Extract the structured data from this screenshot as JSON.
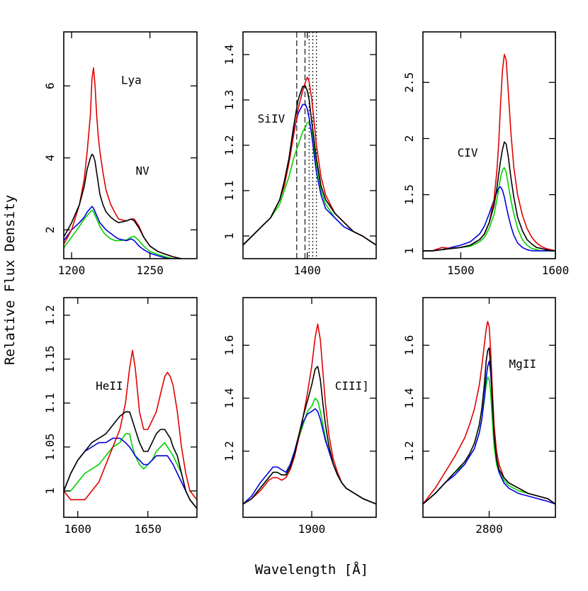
{
  "figure": {
    "ylabel": "Relative Flux Density",
    "xlabel": "Wavelength [Å]"
  },
  "series_colors": [
    "#e00000",
    "#000000",
    "#00d000",
    "#0000e0"
  ],
  "chart_data": [
    {
      "type": "line",
      "line_label": "Lya",
      "second_label": "NV",
      "xlim": [
        1195,
        1280
      ],
      "ylim": [
        1.2,
        7.5
      ],
      "xticks": [
        1200,
        1250
      ],
      "yticks": [
        2,
        4,
        6
      ],
      "x": [
        1195,
        1200,
        1205,
        1208,
        1210,
        1212,
        1213,
        1214,
        1215,
        1216,
        1217,
        1218,
        1220,
        1222,
        1225,
        1228,
        1230,
        1235,
        1238,
        1240,
        1243,
        1246,
        1250,
        1255,
        1260,
        1265,
        1270,
        1275,
        1280
      ],
      "series": [
        {
          "color": "#e00000",
          "values": [
            1.6,
            2.0,
            2.7,
            3.4,
            4.2,
            5.2,
            6.2,
            6.5,
            6.0,
            5.2,
            4.6,
            4.2,
            3.6,
            3.1,
            2.7,
            2.45,
            2.3,
            2.25,
            2.3,
            2.3,
            2.1,
            1.8,
            1.55,
            1.4,
            1.32,
            1.25,
            1.2,
            1.15,
            1.1
          ]
        },
        {
          "color": "#000000",
          "values": [
            1.8,
            2.2,
            2.7,
            3.2,
            3.7,
            4.0,
            4.1,
            4.05,
            3.9,
            3.6,
            3.3,
            3.0,
            2.7,
            2.5,
            2.35,
            2.25,
            2.2,
            2.25,
            2.3,
            2.25,
            2.05,
            1.8,
            1.55,
            1.4,
            1.32,
            1.25,
            1.2,
            1.15,
            1.1
          ]
        },
        {
          "color": "#00d000",
          "values": [
            1.5,
            1.8,
            2.1,
            2.3,
            2.4,
            2.5,
            2.55,
            2.5,
            2.4,
            2.3,
            2.2,
            2.1,
            1.95,
            1.85,
            1.75,
            1.7,
            1.7,
            1.72,
            1.8,
            1.82,
            1.7,
            1.55,
            1.4,
            1.32,
            1.25,
            1.2,
            1.15,
            1.12,
            1.1
          ]
        },
        {
          "color": "#0000e0",
          "values": [
            1.7,
            2.0,
            2.2,
            2.35,
            2.5,
            2.6,
            2.65,
            2.6,
            2.5,
            2.4,
            2.3,
            2.2,
            2.1,
            2.0,
            1.9,
            1.8,
            1.75,
            1.7,
            1.75,
            1.7,
            1.55,
            1.45,
            1.35,
            1.28,
            1.22,
            1.18,
            1.15,
            1.12,
            1.1
          ]
        }
      ]
    },
    {
      "type": "line",
      "line_label": "SiIV",
      "xlim": [
        1330,
        1475
      ],
      "ylim": [
        0.95,
        1.45
      ],
      "xticks": [
        1400
      ],
      "yticks": [
        1,
        1.1,
        1.2,
        1.3,
        1.4
      ],
      "vlines_dashed": [
        1388.5,
        1397.5
      ],
      "vlines_dotted": [
        1402,
        1406,
        1410
      ],
      "x": [
        1330,
        1340,
        1350,
        1360,
        1370,
        1375,
        1380,
        1385,
        1390,
        1395,
        1398,
        1400,
        1402,
        1405,
        1410,
        1415,
        1420,
        1430,
        1440,
        1450,
        1460,
        1475
      ],
      "series": [
        {
          "color": "#e00000",
          "values": [
            0.98,
            1.0,
            1.02,
            1.04,
            1.08,
            1.11,
            1.16,
            1.22,
            1.28,
            1.32,
            1.34,
            1.35,
            1.34,
            1.3,
            1.2,
            1.13,
            1.09,
            1.05,
            1.03,
            1.01,
            1.0,
            0.98
          ]
        },
        {
          "color": "#000000",
          "values": [
            0.98,
            1.0,
            1.02,
            1.04,
            1.08,
            1.12,
            1.17,
            1.24,
            1.3,
            1.33,
            1.33,
            1.32,
            1.3,
            1.25,
            1.17,
            1.11,
            1.08,
            1.05,
            1.03,
            1.01,
            1.0,
            0.98
          ]
        },
        {
          "color": "#00d000",
          "values": [
            0.98,
            1.0,
            1.02,
            1.04,
            1.07,
            1.1,
            1.13,
            1.17,
            1.2,
            1.23,
            1.24,
            1.25,
            1.25,
            1.23,
            1.16,
            1.1,
            1.07,
            1.04,
            1.02,
            1.01,
            1.0,
            0.98
          ]
        },
        {
          "color": "#0000e0",
          "values": [
            0.98,
            1.0,
            1.02,
            1.04,
            1.08,
            1.12,
            1.17,
            1.23,
            1.27,
            1.29,
            1.29,
            1.28,
            1.26,
            1.22,
            1.14,
            1.09,
            1.06,
            1.04,
            1.02,
            1.01,
            1.0,
            0.98
          ]
        }
      ]
    },
    {
      "type": "line",
      "line_label": "CIV",
      "xlim": [
        1460,
        1600
      ],
      "ylim": [
        0.93,
        2.95
      ],
      "xticks": [
        1500,
        1600
      ],
      "yticks": [
        1,
        1.5,
        2,
        2.5
      ],
      "x": [
        1460,
        1470,
        1480,
        1490,
        1500,
        1510,
        1520,
        1525,
        1530,
        1535,
        1538,
        1540,
        1542,
        1544,
        1546,
        1548,
        1550,
        1553,
        1556,
        1560,
        1565,
        1570,
        1575,
        1580,
        1585,
        1590,
        1595,
        1600
      ],
      "series": [
        {
          "color": "#e00000",
          "values": [
            1.0,
            1.0,
            1.03,
            1.02,
            1.03,
            1.05,
            1.1,
            1.15,
            1.25,
            1.45,
            1.7,
            1.95,
            2.3,
            2.6,
            2.75,
            2.7,
            2.45,
            2.05,
            1.75,
            1.5,
            1.32,
            1.2,
            1.12,
            1.07,
            1.04,
            1.02,
            1.01,
            1.0
          ]
        },
        {
          "color": "#000000",
          "values": [
            1.0,
            1.0,
            1.01,
            1.02,
            1.03,
            1.05,
            1.1,
            1.15,
            1.25,
            1.4,
            1.55,
            1.68,
            1.8,
            1.9,
            1.97,
            1.95,
            1.85,
            1.65,
            1.48,
            1.3,
            1.18,
            1.1,
            1.06,
            1.03,
            1.02,
            1.01,
            1.0,
            1.0
          ]
        },
        {
          "color": "#00d000",
          "values": [
            1.0,
            1.0,
            1.01,
            1.02,
            1.03,
            1.04,
            1.08,
            1.12,
            1.2,
            1.32,
            1.45,
            1.55,
            1.65,
            1.72,
            1.74,
            1.7,
            1.6,
            1.45,
            1.33,
            1.2,
            1.1,
            1.05,
            1.02,
            1.01,
            1.0,
            1.0,
            1.0,
            1.0
          ]
        },
        {
          "color": "#0000e0",
          "values": [
            1.0,
            1.0,
            1.01,
            1.03,
            1.05,
            1.08,
            1.15,
            1.22,
            1.33,
            1.45,
            1.52,
            1.56,
            1.57,
            1.54,
            1.48,
            1.4,
            1.32,
            1.22,
            1.14,
            1.07,
            1.03,
            1.01,
            1.0,
            1.0,
            1.0,
            1.0,
            1.0,
            1.0
          ]
        }
      ]
    },
    {
      "type": "line",
      "line_label": "HeII",
      "xlim": [
        1590,
        1685
      ],
      "ylim": [
        0.97,
        1.22
      ],
      "xticks": [
        1600,
        1650
      ],
      "yticks": [
        1,
        1.05,
        1.1,
        1.15,
        1.2
      ],
      "x": [
        1590,
        1595,
        1600,
        1605,
        1610,
        1615,
        1620,
        1625,
        1630,
        1634,
        1637,
        1639,
        1641,
        1644,
        1647,
        1650,
        1653,
        1656,
        1659,
        1662,
        1664,
        1666,
        1668,
        1671,
        1674,
        1677,
        1680,
        1685
      ],
      "series": [
        {
          "color": "#e00000",
          "values": [
            1.0,
            0.99,
            0.99,
            0.99,
            1.0,
            1.01,
            1.03,
            1.05,
            1.07,
            1.1,
            1.14,
            1.16,
            1.14,
            1.09,
            1.07,
            1.07,
            1.08,
            1.09,
            1.11,
            1.13,
            1.135,
            1.13,
            1.12,
            1.09,
            1.05,
            1.02,
            1.0,
            0.99
          ]
        },
        {
          "color": "#000000",
          "values": [
            1.0,
            1.02,
            1.035,
            1.045,
            1.055,
            1.06,
            1.065,
            1.075,
            1.085,
            1.09,
            1.09,
            1.08,
            1.07,
            1.055,
            1.045,
            1.045,
            1.055,
            1.065,
            1.07,
            1.07,
            1.065,
            1.06,
            1.05,
            1.04,
            1.02,
            1.0,
            0.99,
            0.98
          ]
        },
        {
          "color": "#00d000",
          "values": [
            1.0,
            1.0,
            1.01,
            1.02,
            1.025,
            1.03,
            1.04,
            1.05,
            1.055,
            1.065,
            1.065,
            1.05,
            1.04,
            1.03,
            1.025,
            1.03,
            1.035,
            1.045,
            1.05,
            1.055,
            1.05,
            1.045,
            1.04,
            1.03,
            1.02,
            1.0,
            0.99,
            0.98
          ]
        },
        {
          "color": "#0000e0",
          "values": [
            1.0,
            1.02,
            1.035,
            1.045,
            1.05,
            1.055,
            1.055,
            1.06,
            1.06,
            1.055,
            1.05,
            1.045,
            1.04,
            1.035,
            1.03,
            1.03,
            1.035,
            1.04,
            1.04,
            1.04,
            1.04,
            1.035,
            1.03,
            1.02,
            1.01,
            1.0,
            0.99,
            0.98
          ]
        }
      ]
    },
    {
      "type": "line",
      "line_label": "CIII]",
      "xlim": [
        1820,
        1975
      ],
      "ylim": [
        0.95,
        1.78
      ],
      "xticks": [
        1900
      ],
      "yticks": [
        1.2,
        1.4,
        1.6
      ],
      "x": [
        1820,
        1830,
        1840,
        1850,
        1855,
        1860,
        1865,
        1870,
        1875,
        1880,
        1885,
        1890,
        1895,
        1900,
        1904,
        1907,
        1910,
        1913,
        1916,
        1920,
        1925,
        1930,
        1935,
        1940,
        1950,
        1960,
        1975
      ],
      "series": [
        {
          "color": "#e00000",
          "values": [
            1.0,
            1.02,
            1.05,
            1.09,
            1.1,
            1.1,
            1.09,
            1.1,
            1.13,
            1.18,
            1.25,
            1.33,
            1.42,
            1.52,
            1.63,
            1.68,
            1.62,
            1.5,
            1.38,
            1.26,
            1.17,
            1.12,
            1.08,
            1.06,
            1.04,
            1.02,
            1.0
          ]
        },
        {
          "color": "#000000",
          "values": [
            1.0,
            1.02,
            1.06,
            1.1,
            1.12,
            1.12,
            1.11,
            1.11,
            1.14,
            1.19,
            1.26,
            1.33,
            1.39,
            1.45,
            1.51,
            1.52,
            1.47,
            1.38,
            1.3,
            1.22,
            1.15,
            1.11,
            1.08,
            1.06,
            1.04,
            1.02,
            1.0
          ]
        },
        {
          "color": "#00d000",
          "values": [
            1.0,
            1.02,
            1.06,
            1.1,
            1.12,
            1.12,
            1.11,
            1.11,
            1.14,
            1.19,
            1.25,
            1.3,
            1.35,
            1.37,
            1.4,
            1.39,
            1.35,
            1.3,
            1.25,
            1.2,
            1.15,
            1.11,
            1.08,
            1.06,
            1.04,
            1.02,
            1.0
          ]
        },
        {
          "color": "#0000e0",
          "values": [
            1.0,
            1.03,
            1.08,
            1.12,
            1.14,
            1.14,
            1.13,
            1.12,
            1.15,
            1.2,
            1.26,
            1.31,
            1.34,
            1.35,
            1.36,
            1.35,
            1.32,
            1.28,
            1.24,
            1.2,
            1.15,
            1.11,
            1.08,
            1.06,
            1.04,
            1.02,
            1.0
          ]
        }
      ]
    },
    {
      "type": "line",
      "line_label": "MgII",
      "xlim": [
        2665,
        2935
      ],
      "ylim": [
        0.95,
        1.78
      ],
      "xticks": [
        2800
      ],
      "yticks": [
        1.2,
        1.4,
        1.6
      ],
      "x": [
        2665,
        2690,
        2710,
        2730,
        2750,
        2760,
        2770,
        2780,
        2785,
        2790,
        2794,
        2797,
        2800,
        2803,
        2806,
        2810,
        2815,
        2820,
        2830,
        2840,
        2860,
        2880,
        2900,
        2920,
        2935
      ],
      "series": [
        {
          "color": "#e00000",
          "values": [
            1.0,
            1.06,
            1.12,
            1.18,
            1.25,
            1.3,
            1.36,
            1.45,
            1.52,
            1.6,
            1.66,
            1.69,
            1.67,
            1.58,
            1.45,
            1.3,
            1.2,
            1.15,
            1.1,
            1.08,
            1.06,
            1.04,
            1.03,
            1.02,
            1.0
          ]
        },
        {
          "color": "#000000",
          "values": [
            1.0,
            1.04,
            1.08,
            1.12,
            1.16,
            1.19,
            1.23,
            1.3,
            1.36,
            1.45,
            1.54,
            1.58,
            1.59,
            1.52,
            1.4,
            1.26,
            1.17,
            1.13,
            1.1,
            1.08,
            1.06,
            1.04,
            1.03,
            1.02,
            1.0
          ]
        },
        {
          "color": "#00d000",
          "values": [
            1.0,
            1.04,
            1.08,
            1.12,
            1.15,
            1.18,
            1.21,
            1.27,
            1.32,
            1.39,
            1.45,
            1.48,
            1.47,
            1.42,
            1.33,
            1.22,
            1.15,
            1.12,
            1.09,
            1.07,
            1.05,
            1.04,
            1.03,
            1.02,
            1.0
          ]
        },
        {
          "color": "#0000e0",
          "values": [
            1.0,
            1.04,
            1.08,
            1.11,
            1.15,
            1.18,
            1.21,
            1.27,
            1.32,
            1.4,
            1.48,
            1.52,
            1.54,
            1.5,
            1.4,
            1.27,
            1.17,
            1.12,
            1.08,
            1.06,
            1.04,
            1.03,
            1.02,
            1.01,
            1.0
          ]
        }
      ]
    }
  ]
}
